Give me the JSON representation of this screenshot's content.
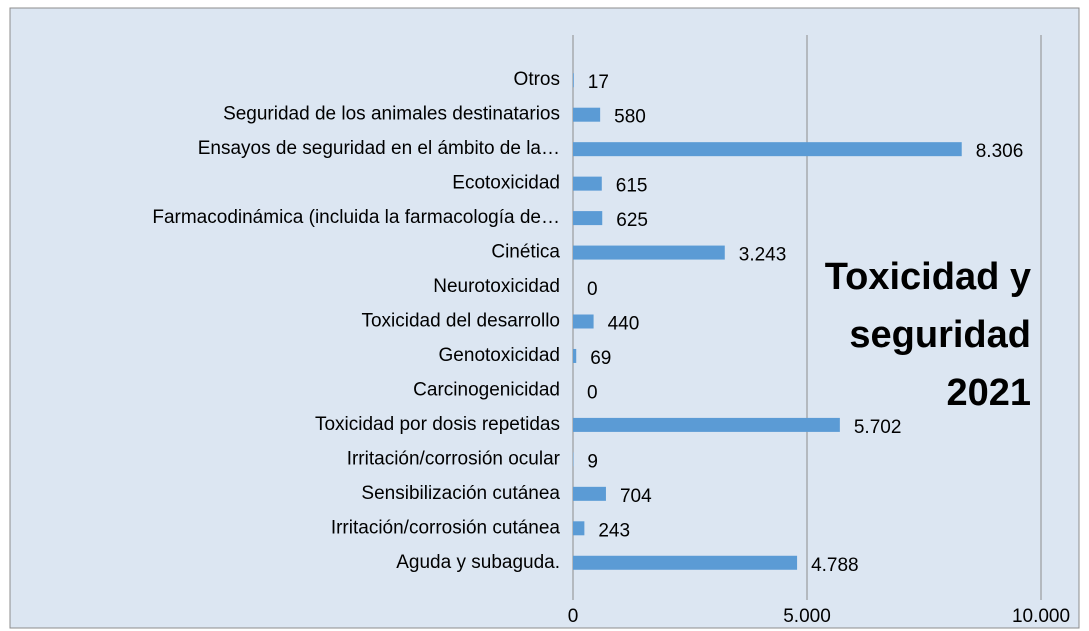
{
  "chart_data": {
    "type": "bar",
    "orientation": "horizontal",
    "title": "Toxicidad y seguridad 2021",
    "categories": [
      "Otros",
      "Seguridad de los animales destinatarios",
      "Ensayos de seguridad en el ámbito de la…",
      "Ecotoxicidad",
      "Farmacodinámica (incluida la farmacología de…",
      "Cinética",
      "Neurotoxicidad",
      "Toxicidad del desarrollo",
      "Genotoxicidad",
      "Carcinogenicidad",
      "Toxicidad por dosis repetidas",
      "Irritación/corrosión ocular",
      "Sensibilización cutánea",
      "Irritación/corrosión cutánea",
      "Aguda y subaguda."
    ],
    "values": [
      17,
      580,
      8306,
      615,
      625,
      3243,
      0,
      440,
      69,
      0,
      5702,
      9,
      704,
      243,
      4788
    ],
    "value_labels": [
      "17",
      "580",
      "8.306",
      "615",
      "625",
      "3.243",
      "0",
      "440",
      "69",
      "0",
      "5.702",
      "9",
      "704",
      "243",
      "4.788"
    ],
    "color": "#5b9bd5",
    "xlim": [
      0,
      10000
    ],
    "xticks": [
      0,
      {
        "value": 5000,
        "label": "5.000"
      },
      {
        "value": 10000,
        "label": "10.000"
      }
    ],
    "grid": true
  }
}
